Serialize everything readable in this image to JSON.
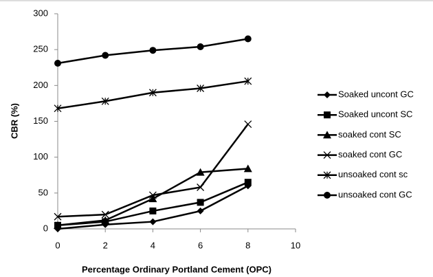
{
  "chart_data": {
    "type": "line",
    "x_label": "Percentage Ordinary Portland Cement (OPC)",
    "y_label": "CBR (%)",
    "x": [
      0,
      2,
      4,
      6,
      8
    ],
    "series": [
      {
        "name": "Soaked uncont GC",
        "color": "#000000",
        "marker": "diamond",
        "values": [
          0,
          6,
          10,
          25,
          60
        ]
      },
      {
        "name": "Soaked uncont SC",
        "color": "#000000",
        "marker": "square",
        "values": [
          5,
          10,
          25,
          37,
          65
        ]
      },
      {
        "name": "soaked cont SC",
        "color": "#000000",
        "marker": "triangle",
        "values": [
          5,
          12,
          42,
          79,
          84
        ]
      },
      {
        "name": "soaked cont GC",
        "color": "#000000",
        "marker": "x",
        "values": [
          17,
          20,
          47,
          58,
          146
        ]
      },
      {
        "name": "unsoaked cont sc",
        "color": "#000000",
        "marker": "star",
        "values": [
          168,
          178,
          190,
          196,
          206
        ]
      },
      {
        "name": "unsoaked cont GC",
        "color": "#000000",
        "marker": "circle",
        "values": [
          231,
          242,
          249,
          254,
          265
        ]
      }
    ],
    "xlim": [
      0,
      10
    ],
    "xticks": [
      0,
      2,
      4,
      6,
      8,
      10
    ],
    "ylim": [
      0,
      300
    ],
    "yticks": [
      0,
      50,
      100,
      150,
      200,
      250,
      300
    ],
    "grid": false,
    "legend": "right"
  }
}
